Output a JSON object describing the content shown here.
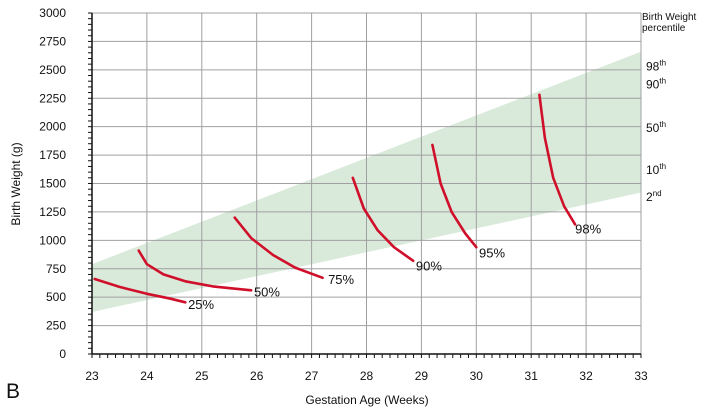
{
  "panel_label": "B",
  "colors": {
    "band": "#d9eadb",
    "curve": "#d0102a",
    "grid": "#a0a0a0",
    "axis": "#111111"
  },
  "chart_data": {
    "type": "line",
    "xlabel": "Gestation Age (Weeks)",
    "ylabel": "Birth Weight (g)",
    "xlim": [
      23,
      33
    ],
    "ylim": [
      0,
      3000
    ],
    "x_ticks": [
      "23",
      "24",
      "25",
      "26",
      "27",
      "28",
      "29",
      "30",
      "31",
      "32",
      "33"
    ],
    "y_ticks": [
      "0",
      "250",
      "500",
      "750",
      "1000",
      "1250",
      "1500",
      "1750",
      "2000",
      "2250",
      "2500",
      "2750",
      "3000"
    ],
    "grid": true,
    "reference_band": {
      "lower": [
        [
          23,
          370
        ],
        [
          33,
          1420
        ]
      ],
      "upper": [
        [
          23,
          790
        ],
        [
          33,
          2660
        ]
      ]
    },
    "percentile_legend": {
      "title": "Birth Weight percentile",
      "entries": [
        {
          "base": "98",
          "sup": "th",
          "y": 2530
        },
        {
          "base": "90",
          "sup": "th",
          "y": 2370
        },
        {
          "base": "50",
          "sup": "th",
          "y": 1990
        },
        {
          "base": "10",
          "sup": "th",
          "y": 1620
        },
        {
          "base": "2",
          "sup": "nd",
          "y": 1380
        }
      ]
    },
    "series": [
      {
        "label": "25%",
        "label_at": [
          24.75,
          395
        ],
        "points": [
          [
            23.05,
            660
          ],
          [
            23.5,
            590
          ],
          [
            24.0,
            530
          ],
          [
            24.4,
            490
          ],
          [
            24.7,
            455
          ]
        ]
      },
      {
        "label": "50%",
        "label_at": [
          25.95,
          505
        ],
        "points": [
          [
            23.85,
            910
          ],
          [
            24.0,
            790
          ],
          [
            24.3,
            700
          ],
          [
            24.7,
            640
          ],
          [
            25.2,
            595
          ],
          [
            25.9,
            560
          ]
        ]
      },
      {
        "label": "75%",
        "label_at": [
          27.3,
          615
        ],
        "points": [
          [
            25.6,
            1200
          ],
          [
            25.9,
            1020
          ],
          [
            26.3,
            870
          ],
          [
            26.7,
            760
          ],
          [
            27.2,
            670
          ]
        ]
      },
      {
        "label": "90%",
        "label_at": [
          28.9,
          735
        ],
        "points": [
          [
            27.75,
            1550
          ],
          [
            27.95,
            1280
          ],
          [
            28.2,
            1090
          ],
          [
            28.5,
            940
          ],
          [
            28.85,
            820
          ]
        ]
      },
      {
        "label": "95%",
        "label_at": [
          30.05,
          850
        ],
        "points": [
          [
            29.2,
            1840
          ],
          [
            29.35,
            1500
          ],
          [
            29.55,
            1250
          ],
          [
            29.8,
            1060
          ],
          [
            30.0,
            940
          ]
        ]
      },
      {
        "label": "98%",
        "label_at": [
          31.8,
          1060
        ],
        "points": [
          [
            31.15,
            2280
          ],
          [
            31.25,
            1900
          ],
          [
            31.4,
            1550
          ],
          [
            31.6,
            1300
          ],
          [
            31.8,
            1140
          ]
        ]
      }
    ]
  }
}
